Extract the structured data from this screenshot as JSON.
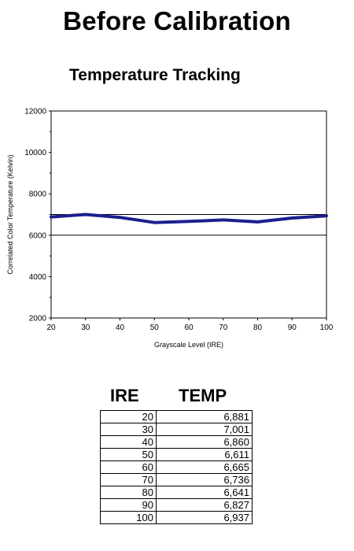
{
  "page": {
    "title": "Before Calibration"
  },
  "table": {
    "headers": [
      "IRE",
      "TEMP"
    ],
    "rows": [
      [
        "20",
        "6,881"
      ],
      [
        "30",
        "7,001"
      ],
      [
        "40",
        "6,860"
      ],
      [
        "50",
        "6,611"
      ],
      [
        "60",
        "6,665"
      ],
      [
        "70",
        "6,736"
      ],
      [
        "80",
        "6,641"
      ],
      [
        "90",
        "6,827"
      ],
      [
        "100",
        "6,937"
      ]
    ]
  },
  "chart_data": {
    "type": "line",
    "title": "Temperature Tracking",
    "xlabel": "Grayscale Level (IRE)",
    "ylabel": "Correlated Color Temperature (Kelvin)",
    "x": [
      20,
      30,
      40,
      50,
      60,
      70,
      80,
      90,
      100
    ],
    "series": [
      {
        "values": [
          6881,
          7001,
          6860,
          6611,
          6665,
          6736,
          6641,
          6827,
          6937
        ],
        "color": "#1c1f8e"
      }
    ],
    "reference_lines": [
      6000,
      7000
    ],
    "xlim": [
      20,
      100
    ],
    "ylim": [
      2000,
      12000
    ],
    "x_ticks": [
      20,
      30,
      40,
      50,
      60,
      70,
      80,
      90,
      100
    ],
    "y_ticks": [
      2000,
      4000,
      6000,
      8000,
      10000,
      12000
    ],
    "grid": false,
    "legend": "none"
  }
}
